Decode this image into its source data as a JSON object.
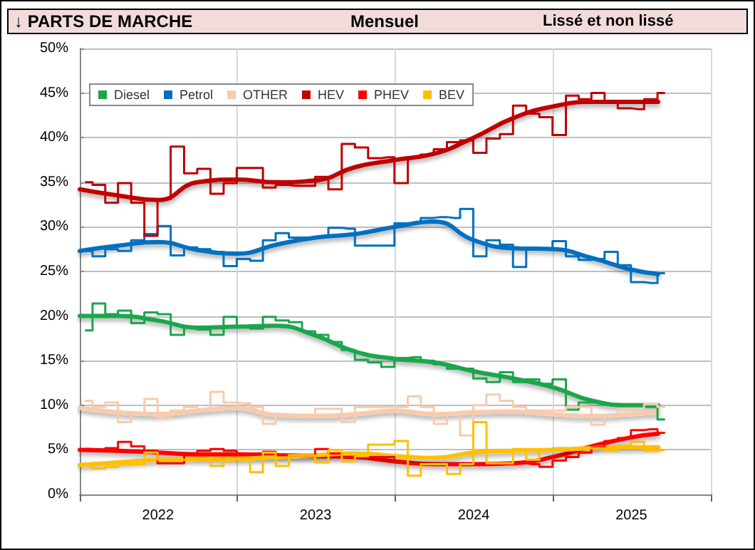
{
  "chart_data": {
    "type": "step",
    "title": "↓ PARTS DE MARCHE",
    "subtitle": "Mensuel",
    "annotations": [
      "Lissé et non lissé"
    ],
    "x": [
      "2022-01-15",
      "2022-02-15",
      "2022-03-15",
      "2022-04-15",
      "2022-05-15",
      "2022-06-15",
      "2022-07-15",
      "2022-08-15",
      "2022-09-15",
      "2022-10-15",
      "2022-11-15",
      "2022-12-15",
      "2023-01-15",
      "2023-02-15",
      "2023-03-15",
      "2023-04-15",
      "2023-05-15",
      "2023-06-15",
      "2023-07-15",
      "2023-08-15",
      "2023-09-15",
      "2023-10-15",
      "2023-11-15",
      "2023-12-15",
      "2024-01-15",
      "2024-02-15",
      "2024-03-15",
      "2024-04-15",
      "2024-05-15",
      "2024-06-15",
      "2024-07-15",
      "2024-08-15",
      "2024-09-15",
      "2024-10-15",
      "2024-11-15",
      "2024-12-15",
      "2025-01-15",
      "2025-02-15",
      "2025-03-15",
      "2025-04-15",
      "2025-05-15",
      "2025-06-15",
      "2025-07-15",
      "2025-08-15",
      "2025-09-15"
    ],
    "xlim": [
      "2022-01",
      "2026-01"
    ],
    "xticks": [
      {
        "value": "2022-07",
        "label": "2022"
      },
      {
        "value": "2023-07",
        "label": "2023"
      },
      {
        "value": "2024-07",
        "label": "2024"
      },
      {
        "value": "2025-07",
        "label": "2025"
      }
    ],
    "ylim": [
      0,
      50
    ],
    "yticks": [
      {
        "value": 0,
        "label": "0%"
      },
      {
        "value": 5,
        "label": "5%"
      },
      {
        "value": 10,
        "label": "10%"
      },
      {
        "value": 15,
        "label": "15%"
      },
      {
        "value": 20,
        "label": "20%"
      },
      {
        "value": 25,
        "label": "25%"
      },
      {
        "value": 30,
        "label": "30%"
      },
      {
        "value": 35,
        "label": "35%"
      },
      {
        "value": 40,
        "label": "40%"
      },
      {
        "value": 45,
        "label": "45%"
      },
      {
        "value": 50,
        "label": "50%"
      }
    ],
    "grid": true,
    "legend": "top left",
    "marker": "none",
    "line_style": "solid",
    "series": [
      {
        "name": "Diesel",
        "color": "#1aa64b",
        "values": [
          18.4,
          21.4,
          20.2,
          20.6,
          19.2,
          20.4,
          20.2,
          17.9,
          18.7,
          18.5,
          17.9,
          19.9,
          18.8,
          18.6,
          19.9,
          19.5,
          19.3,
          18.3,
          17.9,
          17.1,
          16.2,
          15.1,
          14.8,
          14.3,
          15.3,
          15.4,
          15.0,
          14.6,
          14.1,
          14.1,
          13.0,
          12.6,
          13.7,
          12.6,
          12.9,
          12.4,
          12.9,
          9.5,
          10.3,
          10.3,
          10.1,
          10.1,
          10.1,
          9.8,
          8.4
        ]
      },
      {
        "name": "Petrol",
        "color": "#0070c0",
        "values": [
          27.3,
          26.7,
          27.5,
          27.3,
          28.5,
          29.2,
          30.1,
          26.8,
          27.7,
          27.5,
          27.2,
          25.6,
          26.4,
          26.2,
          28.5,
          29.3,
          28.8,
          28.8,
          28.9,
          29.9,
          29.8,
          27.9,
          27.9,
          27.9,
          30.4,
          30.4,
          31.0,
          31.1,
          31.0,
          32.0,
          26.7,
          28.5,
          28.0,
          25.5,
          27.5,
          27.5,
          28.4,
          26.7,
          26.3,
          26.4,
          27.2,
          25.7,
          23.8,
          23.7,
          24.8
        ]
      },
      {
        "name": "OTHER",
        "color": "#f8cbad",
        "values": [
          10.5,
          9.8,
          10.3,
          8.1,
          8.9,
          10.7,
          8.6,
          9.4,
          9.8,
          9.5,
          11.5,
          10.3,
          10.2,
          9.8,
          7.9,
          8.7,
          8.7,
          8.7,
          9.6,
          9.6,
          8.1,
          9.8,
          9.8,
          9.8,
          9.8,
          11.0,
          9.8,
          7.9,
          9.0,
          6.6,
          10.0,
          11.2,
          10.5,
          9.8,
          9.4,
          9.4,
          9.4,
          9.8,
          9.8,
          7.8,
          8.8,
          9.6,
          9.6,
          10.1,
          9.8
        ]
      },
      {
        "name": "HEV",
        "color": "#c00000",
        "values": [
          35.0,
          34.7,
          32.7,
          34.9,
          32.7,
          29.0,
          33.1,
          39.0,
          36.0,
          36.5,
          33.7,
          34.9,
          36.6,
          36.6,
          34.4,
          34.7,
          34.6,
          34.6,
          35.6,
          34.2,
          39.3,
          38.9,
          37.7,
          37.8,
          34.9,
          37.8,
          38.1,
          38.7,
          39.5,
          39.7,
          38.3,
          39.9,
          40.4,
          43.6,
          42.7,
          42.3,
          40.3,
          44.7,
          44.3,
          45.0,
          44.0,
          43.3,
          43.2,
          44.3,
          45.0
        ]
      },
      {
        "name": "PHEV",
        "color": "#ff0000",
        "values": [
          5.1,
          4.9,
          5.2,
          5.9,
          5.4,
          4.9,
          3.5,
          3.5,
          4.4,
          4.9,
          5.1,
          4.9,
          4.6,
          4.6,
          4.8,
          4.4,
          4.4,
          4.4,
          5.1,
          4.6,
          4.2,
          4.2,
          4.2,
          4.2,
          3.7,
          3.4,
          3.4,
          3.4,
          3.4,
          3.4,
          3.4,
          3.4,
          3.4,
          3.5,
          3.4,
          3.1,
          3.8,
          4.2,
          4.7,
          5.3,
          6.0,
          6.3,
          7.2,
          7.3,
          6.9
        ]
      },
      {
        "name": "BEV",
        "color": "#ffc000",
        "values": [
          3.4,
          2.9,
          3.1,
          3.4,
          3.4,
          4.7,
          3.9,
          3.9,
          3.9,
          3.9,
          3.2,
          4.1,
          3.9,
          2.5,
          4.7,
          3.2,
          4.4,
          4.4,
          3.6,
          5.0,
          3.7,
          4.3,
          5.6,
          5.6,
          6.0,
          2.1,
          3.4,
          3.4,
          2.3,
          3.4,
          8.1,
          3.5,
          3.5,
          5.1,
          3.9,
          5.0,
          5.2,
          5.0,
          5.2,
          5.2,
          4.9,
          5.5,
          5.9,
          4.9,
          5.0
        ]
      },
      {
        "type": "line",
        "color": "#1aa64b",
        "x": [
          "2022-01",
          "2022-04",
          "2022-07",
          "2022-10",
          "2023-01",
          "2023-04",
          "2023-07",
          "2023-10",
          "2024-01",
          "2024-04",
          "2024-07",
          "2024-10",
          "2025-01",
          "2025-04",
          "2025-07",
          "2025-09"
        ],
        "values": [
          20.0,
          20.0,
          19.5,
          18.7,
          18.8,
          18.9,
          17.8,
          16.0,
          15.2,
          14.8,
          13.8,
          13.0,
          12.0,
          10.5,
          10.0,
          10.0
        ]
      },
      {
        "type": "line",
        "color": "#0070c0",
        "x": [
          "2022-01",
          "2022-04",
          "2022-07",
          "2022-10",
          "2023-01",
          "2023-04",
          "2023-07",
          "2023-10",
          "2024-01",
          "2024-04",
          "2024-07",
          "2024-10",
          "2025-01",
          "2025-04",
          "2025-07",
          "2025-09"
        ],
        "values": [
          27.3,
          27.9,
          28.3,
          27.4,
          27.0,
          28.0,
          28.8,
          29.2,
          30.0,
          30.6,
          28.5,
          27.6,
          27.5,
          26.5,
          25.2,
          24.7
        ]
      },
      {
        "type": "line",
        "color": "#f8cbad",
        "x": [
          "2022-01",
          "2022-04",
          "2022-07",
          "2022-10",
          "2023-01",
          "2023-04",
          "2023-07",
          "2023-10",
          "2024-01",
          "2024-04",
          "2024-07",
          "2024-10",
          "2025-01",
          "2025-04",
          "2025-07",
          "2025-09"
        ],
        "values": [
          9.7,
          9.2,
          9.0,
          9.4,
          9.7,
          8.9,
          8.8,
          9.0,
          9.4,
          9.0,
          9.2,
          9.3,
          9.0,
          8.8,
          9.0,
          9.2
        ]
      },
      {
        "type": "line",
        "color": "#c00000",
        "x": [
          "2022-01",
          "2022-04",
          "2022-07",
          "2022-10",
          "2023-01",
          "2023-04",
          "2023-07",
          "2023-10",
          "2024-01",
          "2024-04",
          "2024-07",
          "2024-10",
          "2025-01",
          "2025-04",
          "2025-07",
          "2025-09"
        ],
        "values": [
          34.2,
          33.5,
          33.0,
          35.0,
          35.3,
          35.0,
          35.2,
          36.7,
          37.5,
          38.2,
          40.0,
          42.2,
          43.5,
          44.0,
          44.0,
          44.0
        ]
      },
      {
        "type": "line",
        "color": "#ff0000",
        "x": [
          "2022-01",
          "2022-04",
          "2022-07",
          "2022-10",
          "2023-01",
          "2023-04",
          "2023-07",
          "2023-10",
          "2024-01",
          "2024-04",
          "2024-07",
          "2024-10",
          "2025-01",
          "2025-04",
          "2025-07",
          "2025-09"
        ],
        "values": [
          5.0,
          4.9,
          4.7,
          4.5,
          4.5,
          4.4,
          4.3,
          4.2,
          3.7,
          3.4,
          3.4,
          3.5,
          4.2,
          5.4,
          6.4,
          6.8
        ]
      },
      {
        "type": "line",
        "color": "#ffc000",
        "x": [
          "2022-01",
          "2022-04",
          "2022-07",
          "2022-10",
          "2023-01",
          "2023-04",
          "2023-07",
          "2023-10",
          "2024-01",
          "2024-04",
          "2024-07",
          "2024-10",
          "2025-01",
          "2025-04",
          "2025-07",
          "2025-09"
        ],
        "values": [
          3.3,
          3.6,
          3.9,
          4.0,
          4.0,
          4.2,
          4.4,
          4.6,
          4.3,
          4.1,
          4.7,
          4.9,
          5.0,
          5.2,
          5.3,
          5.3
        ]
      }
    ]
  }
}
